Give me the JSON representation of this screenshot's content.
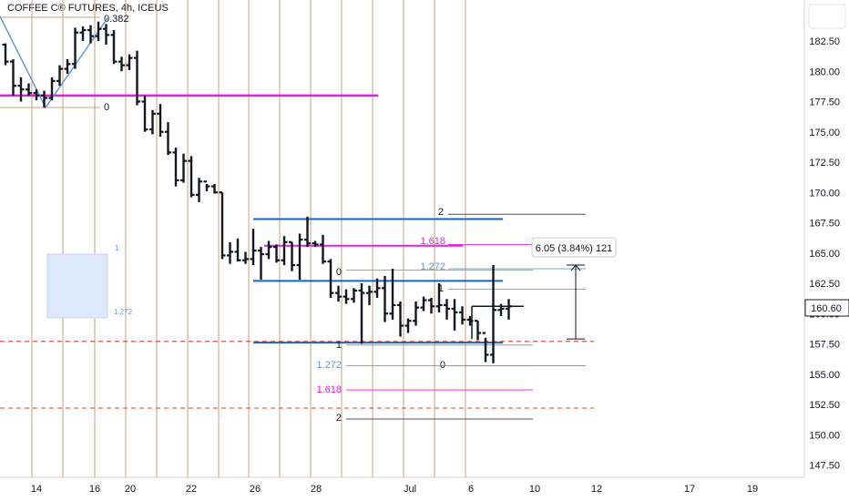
{
  "chart_data": {
    "type": "ohlc",
    "title": "COFFEE C® FUTURES, 4h, ICEUS",
    "y_ticks": [
      182.5,
      180.0,
      177.5,
      175.0,
      172.5,
      170.0,
      167.5,
      165.0,
      162.5,
      160.0,
      157.5,
      155.0,
      152.5,
      150.0,
      147.5
    ],
    "y_tick_labels": [
      "182.50",
      "180.00",
      "177.50",
      "175.00",
      "172.50",
      "170.00",
      "167.50",
      "165.00",
      "162.50",
      "160.00",
      "157.50",
      "155.00",
      "152.50",
      "150.00",
      "147.50"
    ],
    "x_tick_labels": [
      "14",
      "16",
      "20",
      "22",
      "26",
      "28",
      "Jul",
      "6",
      "10",
      "12",
      "17",
      "19"
    ],
    "last_price": "160.60",
    "measure_label": "6.05 (3.84%) 121",
    "fib_labels": {
      "upper_left_0382": "0.382",
      "upper_left_0": "0",
      "box_1": "1",
      "box_1272": "1.272",
      "mid_2": "2",
      "mid_1618": "1.618",
      "mid_0": "0",
      "mid_1272": "1.272",
      "right_1": "1",
      "right_0": "0",
      "low_1": "1",
      "low_1272": "1.272",
      "low_1618": "1.618",
      "low_2": "2"
    },
    "bars": [
      [
        182.2,
        180.5,
        182.3,
        180.8
      ],
      [
        180.8,
        181.0,
        178.0,
        178.8
      ],
      [
        178.8,
        179.5,
        177.5,
        178.5
      ],
      [
        178.5,
        179.0,
        178.0,
        178.2
      ],
      [
        178.2,
        178.5,
        177.6,
        178.0
      ],
      [
        178.0,
        178.4,
        177.0,
        177.8
      ],
      [
        177.8,
        179.5,
        177.6,
        179.2
      ],
      [
        179.2,
        180.5,
        178.8,
        180.2
      ],
      [
        180.2,
        181.0,
        179.8,
        180.6
      ],
      [
        180.6,
        183.6,
        180.2,
        183.2
      ],
      [
        183.2,
        183.7,
        182.5,
        183.4
      ],
      [
        183.4,
        183.8,
        182.3,
        182.9
      ],
      [
        182.9,
        184.1,
        182.5,
        183.5
      ],
      [
        183.5,
        183.9,
        182.2,
        183.0
      ],
      [
        183.0,
        183.4,
        180.6,
        180.8
      ],
      [
        180.8,
        181.2,
        180.0,
        180.5
      ],
      [
        180.5,
        181.4,
        180.1,
        181.1
      ],
      [
        181.1,
        181.7,
        177.2,
        177.5
      ],
      [
        177.5,
        178.0,
        175.0,
        175.2
      ],
      [
        175.2,
        176.8,
        174.8,
        176.5
      ],
      [
        176.5,
        177.3,
        174.6,
        175.0
      ],
      [
        175.0,
        175.8,
        173.1,
        173.3
      ],
      [
        173.3,
        173.7,
        170.5,
        171.0
      ],
      [
        171.0,
        173.2,
        170.8,
        172.6
      ],
      [
        172.6,
        173.0,
        169.6,
        169.8
      ],
      [
        169.8,
        171.2,
        169.2,
        170.9
      ],
      [
        170.9,
        170.7,
        170.1,
        170.5
      ],
      [
        170.5,
        170.7,
        169.9,
        170.0
      ],
      [
        170.0,
        170.0,
        164.5,
        164.8
      ],
      [
        164.8,
        165.9,
        164.1,
        165.1
      ],
      [
        165.1,
        166.2,
        164.3,
        164.4
      ],
      [
        164.4,
        165.1,
        164.1,
        164.5
      ],
      [
        164.5,
        167.0,
        164.0,
        165.2
      ],
      [
        165.2,
        165.5,
        162.8,
        164.9
      ],
      [
        164.9,
        166.0,
        164.5,
        165.5
      ],
      [
        165.5,
        165.7,
        164.2,
        164.4
      ],
      [
        164.4,
        166.4,
        164.0,
        165.9
      ],
      [
        165.9,
        165.9,
        163.5,
        164.0
      ],
      [
        164.0,
        166.6,
        162.8,
        166.1
      ],
      [
        166.1,
        168.0,
        165.5,
        165.8
      ],
      [
        165.8,
        166.0,
        165.5,
        165.7
      ],
      [
        165.7,
        166.5,
        164.1,
        164.3
      ],
      [
        164.3,
        164.5,
        161.3,
        161.7
      ],
      [
        161.7,
        162.3,
        161.0,
        161.4
      ],
      [
        161.4,
        162.0,
        160.8,
        161.2
      ],
      [
        161.2,
        162.1,
        160.9,
        161.9
      ],
      [
        161.9,
        162.5,
        157.5,
        161.7
      ],
      [
        161.7,
        162.3,
        160.7,
        161.8
      ],
      [
        161.8,
        162.9,
        161.3,
        162.1
      ],
      [
        162.1,
        163.1,
        159.3,
        160.0
      ],
      [
        160.0,
        163.7,
        159.5,
        160.7
      ],
      [
        160.7,
        161.0,
        158.1,
        159.0
      ],
      [
        159.0,
        159.6,
        158.4,
        159.4
      ],
      [
        159.4,
        161.0,
        159.0,
        160.5
      ],
      [
        160.5,
        161.4,
        160.2,
        161.1
      ],
      [
        161.1,
        161.3,
        160.0,
        160.6
      ],
      [
        160.6,
        162.5,
        160.1,
        160.7
      ],
      [
        160.7,
        161.2,
        159.5,
        160.4
      ],
      [
        160.4,
        161.2,
        158.6,
        160.1
      ],
      [
        160.1,
        160.6,
        159.1,
        159.5
      ],
      [
        159.5,
        159.8,
        159.0,
        159.4
      ],
      [
        159.4,
        159.4,
        157.8,
        158.4
      ],
      [
        158.4,
        158.0,
        156.0,
        156.6
      ],
      [
        156.6,
        164.0,
        155.9,
        160.3
      ],
      [
        160.3,
        160.8,
        159.8,
        160.4
      ],
      [
        160.4,
        161.2,
        159.5,
        160.6
      ]
    ]
  }
}
